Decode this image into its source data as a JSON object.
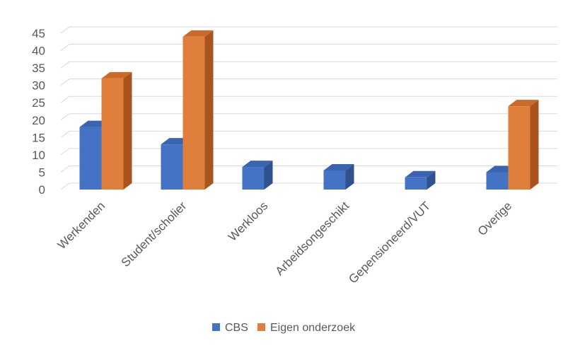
{
  "colors": {
    "cbs_front": "#4472C4",
    "cbs_side": "#2F528F",
    "cbs_top": "#3A63B0",
    "eigen_front": "#E07F3C",
    "eigen_side": "#A9541E",
    "eigen_top": "#C96A2A",
    "grid": "#D9D9D9",
    "text": "#595959"
  },
  "chart_data": {
    "type": "bar",
    "style": "3d-clustered-column",
    "categories": [
      "Werkenden",
      "Student/scholier",
      "Werkloos",
      "Arbeidsongeschikt",
      "Gepensioneerd/VUT",
      "Overige"
    ],
    "series": [
      {
        "name": "CBS",
        "values": [
          18,
          13,
          6.5,
          5.5,
          3.5,
          5
        ]
      },
      {
        "name": "Eigen onderzoek",
        "values": [
          32,
          44,
          0,
          0,
          0,
          24
        ]
      }
    ],
    "yticks": [
      "0",
      "5",
      "10",
      "15",
      "20",
      "25",
      "30",
      "35",
      "40",
      "45"
    ],
    "ylim": [
      0,
      45
    ],
    "grid": true,
    "legend": {
      "position": "bottom",
      "items": [
        "CBS",
        "Eigen onderzoek"
      ]
    }
  }
}
